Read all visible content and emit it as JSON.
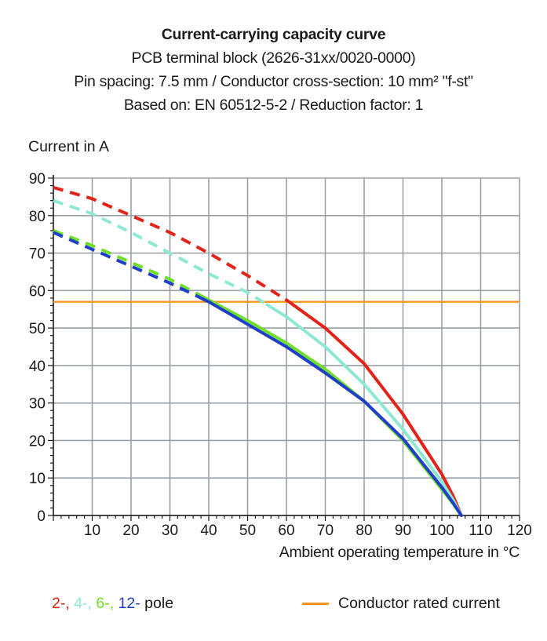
{
  "chart_data": {
    "type": "line",
    "title": "Current-carrying capacity curve",
    "subtitles": [
      "PCB terminal block (2626-31xx/0020-0000)",
      "Pin spacing: 7.5 mm / Conductor cross-section: 10 mm² \"f-st\"",
      "Based on: EN 60512-5-2 / Reduction factor: 1"
    ],
    "ylabel": "Current in A",
    "xlabel": "Ambient operating temperature in °C",
    "xlim": [
      0,
      120
    ],
    "ylim": [
      0,
      90
    ],
    "xticks": [
      10,
      20,
      30,
      40,
      50,
      60,
      70,
      80,
      90,
      100,
      110,
      120
    ],
    "yticks": [
      0,
      10,
      20,
      30,
      40,
      50,
      60,
      70,
      80,
      90
    ],
    "grid": true,
    "rated_current": {
      "label": "Conductor rated current",
      "value": 57,
      "color": "#f7941d"
    },
    "x": [
      0,
      10,
      20,
      30,
      40,
      50,
      60,
      70,
      80,
      90,
      100,
      103,
      105
    ],
    "series": [
      {
        "name": "2-",
        "color": "#e2231a",
        "dashed_below_x": 60,
        "values": [
          87.5,
          84.5,
          80,
          75.5,
          70,
          64,
          57.5,
          50,
          40.5,
          27,
          11,
          5,
          0
        ]
      },
      {
        "name": "4-",
        "color": "#8de8d4",
        "dashed_below_x": 55,
        "values": [
          84,
          80.5,
          75.5,
          70,
          64.5,
          59.5,
          53,
          45,
          35,
          23,
          9,
          4,
          0
        ]
      },
      {
        "name": "6-",
        "color": "#6ee02a",
        "dashed_below_x": 38,
        "values": [
          76,
          72,
          67.5,
          63,
          57.5,
          52,
          46,
          39,
          30.5,
          20,
          7,
          3,
          0
        ]
      },
      {
        "name": "12-",
        "color": "#1f3fc8",
        "dashed_below_x": 38,
        "values": [
          75.5,
          71,
          66.5,
          62,
          57,
          51,
          45,
          38,
          30.5,
          20.5,
          7.5,
          3.2,
          0
        ]
      }
    ],
    "legend_suffix": "pole",
    "legend_placement": "bottom"
  }
}
